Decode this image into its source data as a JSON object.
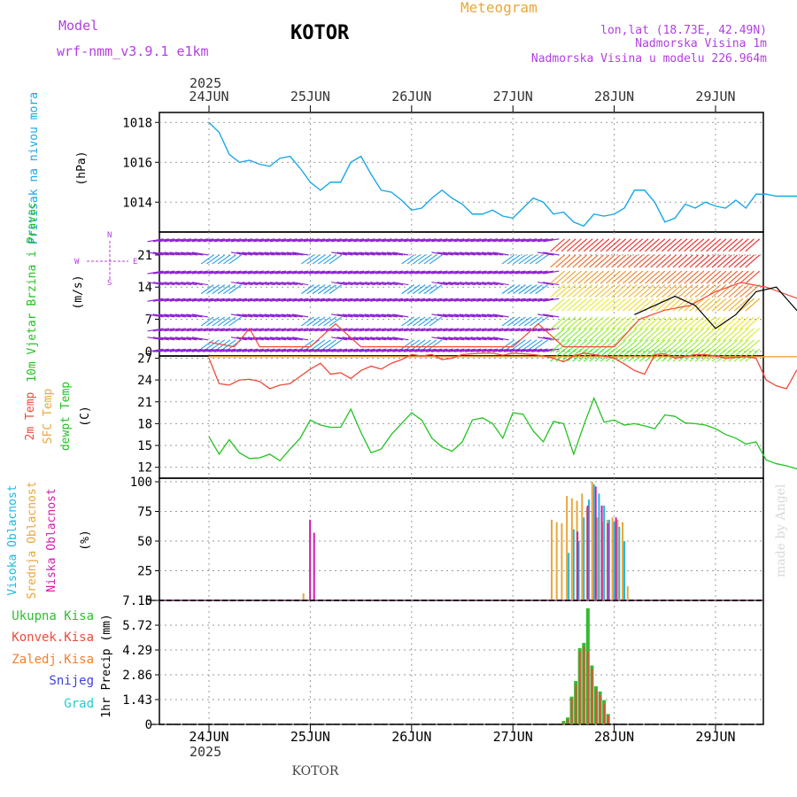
{
  "header": {
    "model_label": "Model",
    "model_name": "wrf-nmm_v3.9.1 e1km",
    "location": "KOTOR",
    "product": "Meteogram",
    "lonlat": "lon,lat (18.73E, 42.49N)",
    "elevation": "Nadmorska Visina 1m",
    "model_elevation": "Nadmorska Visina u modelu 226.964m",
    "year": "2025",
    "watermark": "made by Angel",
    "footer": "KOTOR"
  },
  "colors": {
    "pressure": "#1aa7e6",
    "t2m": "#ee4a3a",
    "sfc": "#e8a73c",
    "dewpt": "#22c322",
    "high_cloud": "#1eb8e0",
    "mid_cloud": "#e8a73c",
    "low_cloud": "#d21caa",
    "total_precip": "#33bb33",
    "conv_precip": "#ee4a3a",
    "frozen_precip": "#f08030",
    "snow": "#4040dd",
    "hail": "#22cccc",
    "wind_purple": "#8c1ed2",
    "wind_blue": "#28a0e6",
    "gust": "#000000"
  },
  "chart_data": [
    {
      "type": "line",
      "panel": "pressure",
      "ylabel": "Pritisak na nivou mora",
      "unit": "(hPa)",
      "ylim": [
        1012.5,
        1018.5
      ],
      "yticks": [
        1014,
        1016,
        1018
      ],
      "xticks": [
        "24JUN",
        "25JUN",
        "26JUN",
        "27JUN",
        "28JUN",
        "29JUN"
      ],
      "x_range_days": [
        0,
        6.1
      ],
      "grid": true,
      "series": [
        {
          "x": [
            0,
            0.1,
            0.2,
            0.3,
            0.4,
            0.5,
            0.6,
            0.7,
            0.8,
            0.9,
            1.0,
            1.1,
            1.2,
            1.3,
            1.4,
            1.5,
            1.6,
            1.7,
            1.8,
            1.9,
            2.0,
            2.1,
            2.2,
            2.3,
            2.4,
            2.5,
            2.6,
            2.7,
            2.8,
            2.9,
            3.0,
            3.1,
            3.2,
            3.3,
            3.4,
            3.5,
            3.6,
            3.7,
            3.8,
            3.9,
            4.0,
            4.1,
            4.2,
            4.3,
            4.4,
            4.5,
            4.6,
            4.7,
            4.8,
            4.9,
            5.0,
            5.1,
            5.2,
            5.3,
            5.4,
            5.5,
            5.6,
            5.7,
            5.8,
            5.9,
            6.0,
            6.1
          ],
          "values": [
            1018.0,
            1017.5,
            1016.4,
            1016.0,
            1016.1,
            1015.9,
            1015.8,
            1016.2,
            1016.3,
            1015.7,
            1015.0,
            1014.6,
            1015.0,
            1015.0,
            1016.0,
            1016.3,
            1015.4,
            1014.6,
            1014.5,
            1014.1,
            1013.6,
            1013.7,
            1014.2,
            1014.6,
            1014.2,
            1013.9,
            1013.4,
            1013.4,
            1013.6,
            1013.3,
            1013.2,
            1013.7,
            1014.2,
            1014.0,
            1013.4,
            1013.5,
            1013.0,
            1012.8,
            1013.4,
            1013.3,
            1013.4,
            1013.7,
            1014.6,
            1014.6,
            1014.0,
            1013.0,
            1013.2,
            1013.9,
            1013.7,
            1014.0,
            1013.8,
            1013.7,
            1014.1,
            1013.7,
            1014.4,
            1014.4,
            1014.3,
            1014.3,
            1014.3,
            1014.3,
            1014.3,
            1014.3
          ]
        }
      ]
    },
    {
      "type": "line",
      "panel": "wind",
      "ylabel": "10m Vjetar Brzina i Pravac",
      "unit": "(m/s)",
      "compass": [
        "W",
        "E",
        "N",
        "S"
      ],
      "ylim": [
        -1,
        26
      ],
      "yticks": [
        0,
        7,
        14,
        21
      ],
      "series": [
        {
          "name": "speed",
          "x": [
            0,
            0.25,
            0.4,
            0.5,
            0.75,
            1.0,
            1.25,
            1.5,
            1.75,
            2.0,
            2.25,
            2.5,
            2.75,
            3.0,
            3.25,
            3.5,
            3.75,
            4.0,
            4.25,
            4.5,
            4.75,
            5.0,
            5.25,
            5.5,
            5.75,
            6.0,
            6.1
          ],
          "values": [
            2,
            1,
            5,
            1,
            1,
            1,
            6,
            1,
            1,
            1,
            1,
            1,
            1,
            1,
            6,
            1,
            1,
            1,
            7,
            9,
            10,
            13,
            15,
            14,
            12,
            10,
            9
          ]
        },
        {
          "name": "gust",
          "x": [
            4.2,
            4.4,
            4.6,
            4.8,
            5.0,
            5.2,
            5.4,
            5.6,
            5.8,
            6.0,
            6.1
          ],
          "values": [
            8,
            10,
            12,
            10,
            5,
            8,
            13,
            14,
            9,
            5,
            4
          ]
        }
      ]
    },
    {
      "type": "line",
      "panel": "temperature",
      "ylabel": [
        "2m Temp",
        "SFC Temp",
        "dewpt Temp"
      ],
      "unit": "(C)",
      "ylim": [
        10.5,
        27.3
      ],
      "yticks": [
        12,
        15,
        18,
        21,
        24,
        27
      ],
      "series": [
        {
          "name": "2m Temp",
          "x": [
            0,
            0.1,
            0.2,
            0.3,
            0.4,
            0.5,
            0.6,
            0.7,
            0.8,
            0.9,
            1.0,
            1.1,
            1.2,
            1.3,
            1.4,
            1.5,
            1.6,
            1.7,
            1.8,
            1.9,
            2.0,
            2.1,
            2.2,
            2.3,
            2.4,
            2.5,
            2.6,
            2.7,
            2.8,
            2.9,
            3.0,
            3.1,
            3.2,
            3.3,
            3.4,
            3.5,
            3.6,
            3.7,
            3.8,
            3.9,
            4.0,
            4.1,
            4.2,
            4.3,
            4.4,
            4.5,
            4.6,
            4.7,
            4.8,
            4.9,
            5.0,
            5.1,
            5.2,
            5.3,
            5.4,
            5.5,
            5.6,
            5.7,
            5.8,
            5.9,
            6.0,
            6.1
          ],
          "values": [
            27.0,
            23.5,
            23.3,
            24.0,
            24.1,
            23.8,
            22.8,
            23.3,
            23.5,
            24.5,
            25.5,
            26.3,
            24.8,
            25.0,
            24.2,
            25.3,
            25.9,
            25.5,
            26.3,
            26.8,
            27.5,
            27.3,
            27.5,
            26.8,
            27.0,
            27.5,
            27.6,
            27.7,
            27.7,
            27.4,
            27.7,
            27.6,
            27.5,
            27.3,
            27.0,
            26.5,
            27.3,
            27.7,
            27.5,
            27.3,
            27.0,
            26.2,
            25.3,
            24.8,
            27.5,
            27.6,
            27.0,
            27.2,
            27.5,
            27.5,
            27.3,
            27.0,
            27.1,
            27.2,
            27.0,
            24.0,
            23.2,
            22.8,
            25.3,
            26.5,
            27.5,
            27.8
          ]
        },
        {
          "name": "SFC Temp",
          "x": [
            0,
            6.1
          ],
          "values": [
            27.2,
            27.2
          ]
        },
        {
          "name": "dewpt Temp",
          "x": [
            0,
            0.1,
            0.2,
            0.3,
            0.4,
            0.5,
            0.6,
            0.7,
            0.8,
            0.9,
            1.0,
            1.1,
            1.2,
            1.3,
            1.4,
            1.5,
            1.6,
            1.7,
            1.8,
            1.9,
            2.0,
            2.1,
            2.2,
            2.3,
            2.4,
            2.5,
            2.6,
            2.7,
            2.8,
            2.9,
            3.0,
            3.1,
            3.2,
            3.3,
            3.4,
            3.5,
            3.6,
            3.7,
            3.8,
            3.9,
            4.0,
            4.1,
            4.2,
            4.3,
            4.4,
            4.5,
            4.6,
            4.7,
            4.8,
            4.9,
            5.0,
            5.1,
            5.2,
            5.3,
            5.4,
            5.5,
            5.6,
            5.7,
            5.8,
            5.9,
            6.0,
            6.1
          ],
          "values": [
            16.2,
            13.8,
            15.8,
            14.0,
            13.2,
            13.3,
            13.8,
            12.9,
            14.5,
            16.0,
            18.5,
            17.8,
            17.5,
            17.5,
            20.0,
            16.8,
            14.0,
            14.5,
            16.5,
            18.0,
            19.5,
            18.5,
            16.0,
            14.8,
            14.2,
            15.5,
            18.5,
            18.8,
            18.0,
            16.0,
            19.5,
            19.3,
            17.0,
            15.5,
            18.3,
            18.0,
            13.8,
            17.8,
            21.5,
            18.2,
            18.5,
            17.8,
            18.0,
            17.7,
            17.3,
            19.2,
            19.0,
            18.1,
            18.0,
            17.8,
            17.3,
            16.5,
            16.0,
            15.2,
            15.5,
            13.0,
            12.5,
            12.2,
            11.8,
            11.5,
            11.5,
            11.0
          ]
        }
      ]
    },
    {
      "type": "bar",
      "panel": "cloud",
      "ylabel": [
        "Visoka Oblacnost",
        "Srednja Oblacnost",
        "Niska Oblacnost"
      ],
      "unit": "(%)",
      "ylim": [
        0,
        103
      ],
      "yticks": [
        0,
        25,
        50,
        75,
        100
      ],
      "series": [
        {
          "name": "Visoka Oblacnost",
          "x": [
            3.55,
            3.6,
            3.65,
            3.7,
            3.75,
            3.8,
            3.85,
            3.9,
            3.95,
            4.0,
            4.05,
            4.1
          ],
          "values": [
            40,
            60,
            50,
            70,
            85,
            98,
            90,
            80,
            68,
            66,
            62,
            50
          ]
        },
        {
          "name": "Srednja Oblacnost",
          "x": [
            0.95,
            3.4,
            3.45,
            3.5,
            3.55,
            3.6,
            3.65,
            3.7,
            3.75,
            3.8,
            3.85,
            3.9,
            3.95,
            4.0,
            4.05,
            4.1,
            4.15
          ],
          "values": [
            6,
            68,
            66,
            65,
            88,
            86,
            84,
            90,
            78,
            100,
            70,
            66,
            68,
            70,
            68,
            66,
            12
          ]
        },
        {
          "name": "Niska Oblacnost",
          "x": [
            0.98,
            1.02,
            3.62,
            3.72,
            3.8,
            3.86,
            3.92,
            4.0
          ],
          "values": [
            68,
            57,
            58,
            80,
            96,
            80,
            65,
            70
          ]
        }
      ]
    },
    {
      "type": "bar",
      "panel": "precip",
      "ylabel": [
        "Ukupna Kisa",
        "Konvek.Kisa",
        "Zaledj.Kisa",
        "Snijeg",
        "Grad"
      ],
      "unit": "1hr Precip (mm)",
      "ylim": [
        0,
        7.15
      ],
      "yticks": [
        0,
        1.43,
        2.86,
        4.29,
        5.72,
        7.15
      ],
      "series": [
        {
          "name": "Ukupna Kisa",
          "x": [
            3.5,
            3.54,
            3.58,
            3.62,
            3.66,
            3.7,
            3.74,
            3.78,
            3.82,
            3.86,
            3.9,
            3.94
          ],
          "values": [
            0.2,
            0.4,
            1.6,
            2.5,
            4.4,
            4.7,
            6.7,
            3.4,
            2.2,
            1.9,
            1.4,
            0.6
          ]
        },
        {
          "name": "Konvek.Kisa",
          "x": [
            3.5,
            3.54,
            3.58,
            3.62,
            3.66,
            3.7,
            3.74,
            3.78,
            3.82,
            3.86,
            3.9,
            3.94
          ],
          "values": [
            0.1,
            0.3,
            1.5,
            2.3,
            4.2,
            4.5,
            4.2,
            3.2,
            2.0,
            1.7,
            1.2,
            0.5
          ]
        }
      ]
    }
  ]
}
